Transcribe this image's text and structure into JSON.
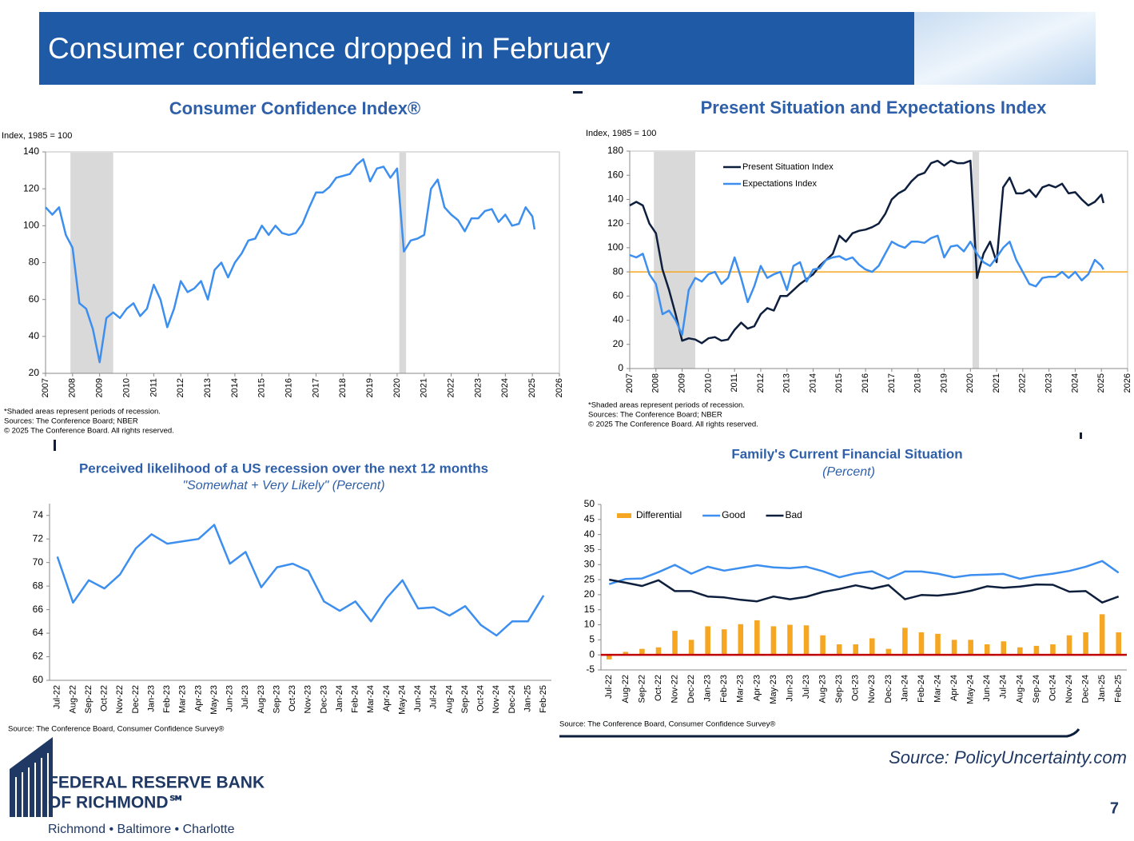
{
  "header": {
    "title": "Consumer confidence dropped in February"
  },
  "footer": {
    "source": "Source: PolicyUncertainty.com",
    "page": "7",
    "logo_lines": [
      "FEDERAL RESERVE BANK",
      "OF RICHMOND℠"
    ],
    "cities": "Richmond • Baltimore • Charlotte"
  },
  "chart_data": [
    {
      "type": "line",
      "title": "Consumer Confidence Index®",
      "y_label": "Index, 1985 = 100",
      "color": "#3d8fef",
      "notes": [
        "*Shaded areas represent periods of recession.",
        "Sources: The Conference Board;  NBER",
        "© 2025 The Conference Board. All rights reserved."
      ],
      "x": [
        2007,
        2007.25,
        2007.5,
        2007.75,
        2008,
        2008.25,
        2008.5,
        2008.75,
        2009,
        2009.25,
        2009.5,
        2009.75,
        2010,
        2010.25,
        2010.5,
        2010.75,
        2011,
        2011.25,
        2011.5,
        2011.75,
        2012,
        2012.25,
        2012.5,
        2012.75,
        2013,
        2013.25,
        2013.5,
        2013.75,
        2014,
        2014.25,
        2014.5,
        2014.75,
        2015,
        2015.25,
        2015.5,
        2015.75,
        2016,
        2016.25,
        2016.5,
        2016.75,
        2017,
        2017.25,
        2017.5,
        2017.75,
        2018,
        2018.25,
        2018.5,
        2018.75,
        2019,
        2019.25,
        2019.5,
        2019.75,
        2020,
        2020.25,
        2020.5,
        2020.75,
        2021,
        2021.25,
        2021.5,
        2021.75,
        2022,
        2022.25,
        2022.5,
        2022.75,
        2023,
        2023.25,
        2023.5,
        2023.75,
        2024,
        2024.25,
        2024.5,
        2024.75,
        2025,
        2025.08
      ],
      "values": [
        110,
        106,
        110,
        95,
        88,
        58,
        55,
        44,
        26,
        50,
        53,
        50,
        55,
        58,
        51,
        55,
        68,
        60,
        45,
        55,
        70,
        64,
        66,
        70,
        60,
        76,
        80,
        72,
        80,
        85,
        92,
        93,
        100,
        95,
        100,
        96,
        95,
        96,
        101,
        110,
        118,
        118,
        121,
        126,
        127,
        128,
        133,
        136,
        124,
        131,
        132,
        126,
        131,
        86,
        92,
        93,
        95,
        120,
        125,
        110,
        106,
        103,
        97,
        104,
        104,
        108,
        109,
        102,
        106,
        100,
        101,
        110,
        105,
        98
      ],
      "recessions": [
        [
          2007.92,
          2009.5
        ],
        [
          2020.08,
          2020.33
        ]
      ],
      "shade_color": "#d9d9d9",
      "xlim": [
        2007,
        2026
      ],
      "xticks": [
        2007,
        2008,
        2009,
        2010,
        2011,
        2012,
        2013,
        2014,
        2015,
        2016,
        2017,
        2018,
        2019,
        2020,
        2021,
        2022,
        2023,
        2024,
        2025,
        2026
      ],
      "ylim": [
        20,
        140
      ],
      "yticks": [
        20,
        40,
        60,
        80,
        100,
        120,
        140
      ],
      "grid": false
    },
    {
      "type": "line",
      "title": "Present Situation and Expectations Index",
      "y_label": "Index, 1985 = 100",
      "legend": "upper left",
      "notes": [
        "*Shaded areas represent periods of recession.",
        "Sources: The Conference Board;  NBER",
        "© 2025 The Conference Board. All rights reserved."
      ],
      "x": [
        2007,
        2007.25,
        2007.5,
        2007.75,
        2008,
        2008.25,
        2008.5,
        2008.75,
        2009,
        2009.25,
        2009.5,
        2009.75,
        2010,
        2010.25,
        2010.5,
        2010.75,
        2011,
        2011.25,
        2011.5,
        2011.75,
        2012,
        2012.25,
        2012.5,
        2012.75,
        2013,
        2013.25,
        2013.5,
        2013.75,
        2014,
        2014.25,
        2014.5,
        2014.75,
        2015,
        2015.25,
        2015.5,
        2015.75,
        2016,
        2016.25,
        2016.5,
        2016.75,
        2017,
        2017.25,
        2017.5,
        2017.75,
        2018,
        2018.25,
        2018.5,
        2018.75,
        2019,
        2019.25,
        2019.5,
        2019.75,
        2020,
        2020.25,
        2020.5,
        2020.75,
        2021,
        2021.25,
        2021.5,
        2021.75,
        2022,
        2022.25,
        2022.5,
        2022.75,
        2023,
        2023.25,
        2023.5,
        2023.75,
        2024,
        2024.25,
        2024.5,
        2024.75,
        2025,
        2025.08
      ],
      "series": [
        {
          "name": "Present Situation Index",
          "color": "#0e1f3d",
          "values": [
            135,
            138,
            135,
            120,
            112,
            82,
            65,
            45,
            23,
            25,
            24,
            21,
            25,
            26,
            23,
            24,
            32,
            38,
            33,
            35,
            45,
            50,
            48,
            60,
            60,
            65,
            70,
            74,
            78,
            85,
            90,
            95,
            110,
            105,
            112,
            114,
            115,
            117,
            120,
            128,
            140,
            145,
            148,
            155,
            160,
            162,
            170,
            172,
            168,
            172,
            170,
            170,
            172,
            75,
            95,
            105,
            88,
            150,
            158,
            145,
            145,
            148,
            142,
            150,
            152,
            150,
            153,
            145,
            146,
            140,
            135,
            138,
            144,
            137
          ]
        },
        {
          "name": "Expectations Index",
          "color": "#3d8fef",
          "values": [
            94,
            92,
            95,
            78,
            70,
            45,
            48,
            40,
            28,
            65,
            75,
            72,
            78,
            80,
            70,
            75,
            92,
            75,
            55,
            68,
            85,
            75,
            78,
            80,
            65,
            85,
            88,
            72,
            82,
            83,
            90,
            92,
            93,
            90,
            92,
            86,
            82,
            80,
            85,
            95,
            105,
            102,
            100,
            105,
            105,
            104,
            108,
            110,
            92,
            101,
            102,
            97,
            105,
            95,
            88,
            85,
            92,
            100,
            105,
            90,
            80,
            70,
            68,
            75,
            76,
            76,
            80,
            75,
            80,
            73,
            78,
            90,
            85,
            82
          ]
        }
      ],
      "reference_line": {
        "value": 80,
        "color": "#f5a623"
      },
      "recessions": [
        [
          2007.92,
          2009.5
        ],
        [
          2020.08,
          2020.33
        ]
      ],
      "shade_color": "#d9d9d9",
      "xlim": [
        2007,
        2026
      ],
      "xticks": [
        2007,
        2008,
        2009,
        2010,
        2011,
        2012,
        2013,
        2014,
        2015,
        2016,
        2017,
        2018,
        2019,
        2020,
        2021,
        2022,
        2023,
        2024,
        2025,
        2026
      ],
      "ylim": [
        0,
        180
      ],
      "yticks": [
        0,
        20,
        40,
        60,
        80,
        100,
        120,
        140,
        160,
        180
      ],
      "grid": false
    },
    {
      "type": "line",
      "title": "Perceived likelihood of a US recession over the next 12 months",
      "subtitle": "\"Somewhat + Very Likely\" (Percent)",
      "color": "#3d8fef",
      "notes": [
        "Source: The Conference Board, Consumer Confidence    Survey®"
      ],
      "categories": [
        "Jul-22",
        "Aug-22",
        "Sep-22",
        "Oct-22",
        "Nov-22",
        "Dec-22",
        "Jan-23",
        "Feb-23",
        "Mar-23",
        "Apr-23",
        "May-23",
        "Jun-23",
        "Jul-23",
        "Aug-23",
        "Sep-23",
        "Oct-23",
        "Nov-23",
        "Dec-23",
        "Jan-24",
        "Feb-24",
        "Mar-24",
        "Apr-24",
        "May-24",
        "Jun-24",
        "Jul-24",
        "Aug-24",
        "Sep-24",
        "Oct-24",
        "Nov-24",
        "Dec-24",
        "Jan-25",
        "Feb-25"
      ],
      "values": [
        70.5,
        66.6,
        68.5,
        67.8,
        69.0,
        71.2,
        72.4,
        71.6,
        71.8,
        72.0,
        73.2,
        69.9,
        70.9,
        67.9,
        69.6,
        69.9,
        69.3,
        66.7,
        65.9,
        66.7,
        65.0,
        67.0,
        68.5,
        66.1,
        66.2,
        65.5,
        66.3,
        64.7,
        63.8,
        65.0,
        65.0,
        67.2
      ],
      "ylim": [
        60,
        75
      ],
      "yticks": [
        60,
        62,
        64,
        66,
        68,
        70,
        72,
        74
      ],
      "grid": false
    },
    {
      "type": "bar",
      "title": "Family's Current Financial Situation",
      "subtitle": "(Percent)",
      "legend": "upper left",
      "baseline_color": "#c00000",
      "notes": [
        "Source: The Conference Board, Consumer Confidence     Survey®"
      ],
      "categories": [
        "Jul-22",
        "Aug-22",
        "Sep-22",
        "Oct-22",
        "Nov-22",
        "Dec-22",
        "Jan-23",
        "Feb-23",
        "Mar-23",
        "Apr-23",
        "May-23",
        "Jun-23",
        "Jul-23",
        "Aug-23",
        "Sep-23",
        "Oct-23",
        "Nov-23",
        "Dec-23",
        "Jan-24",
        "Feb-24",
        "Mar-24",
        "Apr-24",
        "May-24",
        "Jun-24",
        "Jul-24",
        "Aug-24",
        "Sep-24",
        "Oct-24",
        "Nov-24",
        "Dec-24",
        "Jan-25",
        "Feb-25"
      ],
      "series": [
        {
          "name": "Differential",
          "type": "bar",
          "color": "#f5a623",
          "values": [
            -1.5,
            1,
            2,
            2.5,
            8,
            5,
            9.5,
            8.5,
            10.2,
            11.5,
            9.5,
            10,
            9.8,
            6.5,
            3.5,
            3.5,
            5.5,
            2,
            9,
            7.5,
            7,
            5,
            5,
            3.5,
            4.5,
            2.5,
            3,
            3.5,
            6.5,
            7.5,
            13.5,
            7.5
          ]
        },
        {
          "name": "Good",
          "type": "line",
          "color": "#3d8fef",
          "values": [
            23.5,
            25.2,
            25.4,
            27.5,
            29.9,
            27.0,
            29.3,
            28.0,
            28.9,
            29.8,
            29.1,
            28.8,
            29.3,
            27.8,
            25.8,
            27.1,
            27.8,
            25.3,
            27.7,
            27.7,
            27.0,
            25.8,
            26.5,
            26.7,
            26.9,
            25.3,
            26.3,
            27.0,
            27.9,
            29.3,
            31.2,
            27.3
          ]
        },
        {
          "name": "Bad",
          "type": "line",
          "color": "#0e1f3d",
          "values": [
            25.0,
            24.0,
            22.9,
            24.8,
            21.2,
            21.2,
            19.4,
            19.1,
            18.3,
            17.8,
            19.4,
            18.5,
            19.3,
            20.9,
            21.9,
            23.1,
            22.0,
            23.2,
            18.5,
            19.9,
            19.7,
            20.3,
            21.3,
            22.8,
            22.3,
            22.7,
            23.4,
            23.3,
            21.0,
            21.2,
            17.4,
            19.4
          ]
        }
      ],
      "ylim": [
        -5,
        50
      ],
      "yticks": [
        -5,
        0,
        5,
        10,
        15,
        20,
        25,
        30,
        35,
        40,
        45,
        50
      ],
      "grid": false
    }
  ]
}
